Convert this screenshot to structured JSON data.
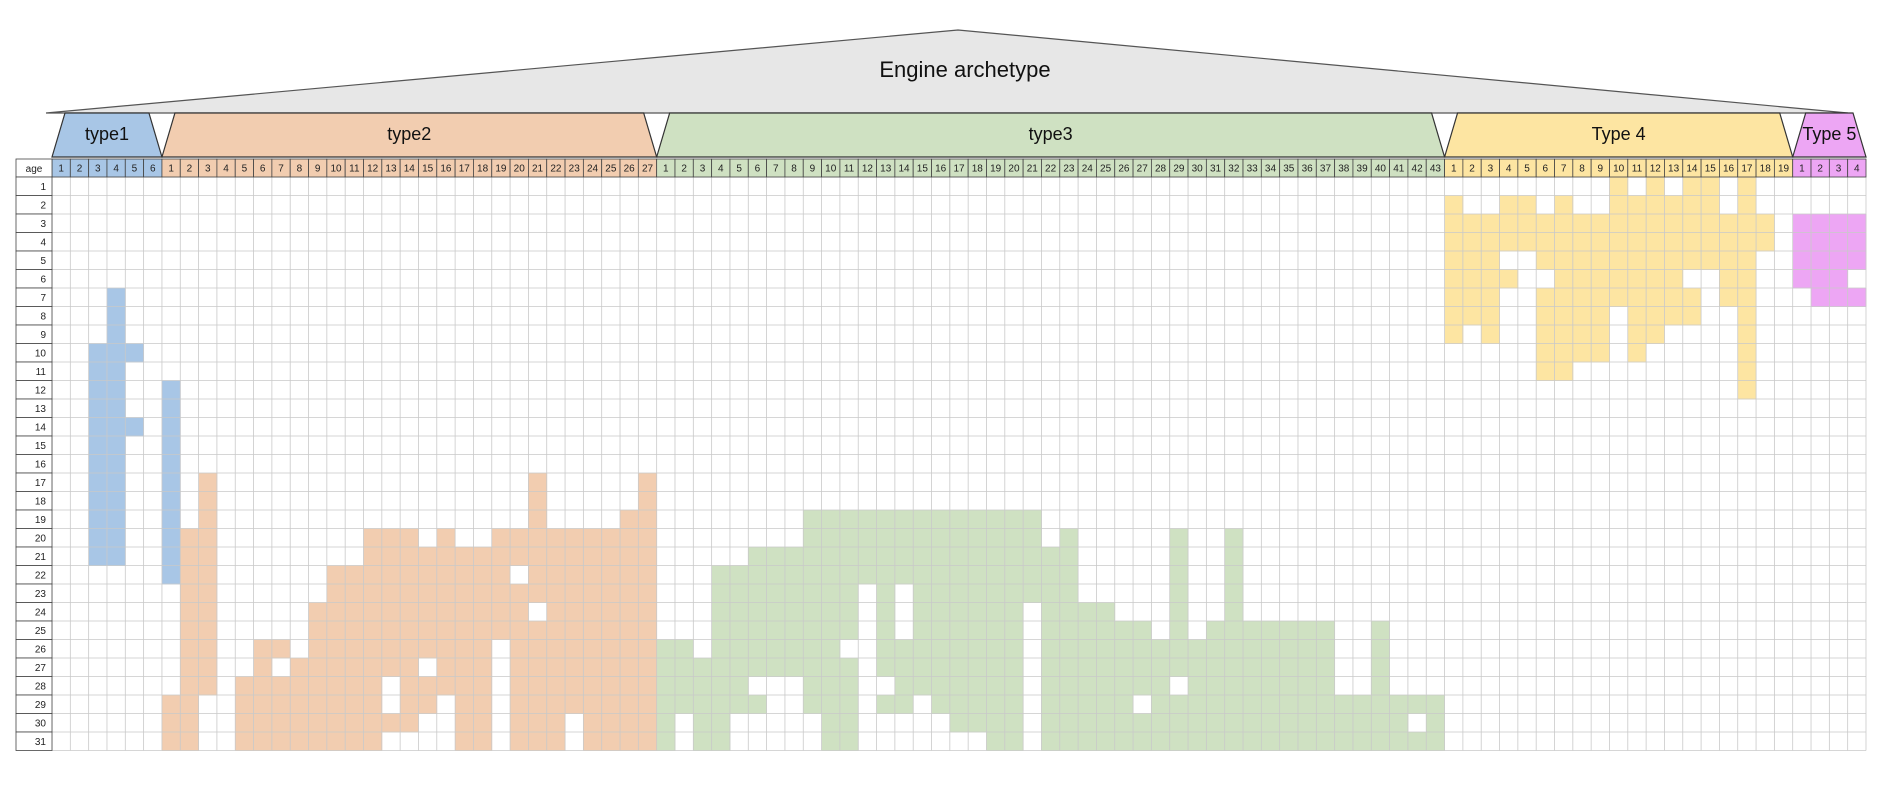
{
  "chart_data": {
    "type": "heatmap",
    "title": "Engine archetype",
    "row_header": "age",
    "rows": [
      1,
      2,
      3,
      4,
      5,
      6,
      7,
      8,
      9,
      10,
      11,
      12,
      13,
      14,
      15,
      16,
      17,
      18,
      19,
      20,
      21,
      22,
      23,
      24,
      25,
      26,
      27,
      28,
      29,
      30,
      31
    ],
    "groups": [
      {
        "name": "type1",
        "color": "#a8c6e6",
        "columns": [
          1,
          2,
          3,
          4,
          5,
          6
        ],
        "filled": [
          [
            7,
            12,
            22
          ],
          [
            4,
            12,
            21
          ],
          [
            3,
            10,
            21
          ],
          [
            3,
            10,
            10
          ],
          [
            3,
            12,
            13
          ],
          [
            3,
            15,
            15
          ],
          [
            4,
            7,
            11
          ],
          [
            4,
            13,
            15
          ],
          [
            5,
            10,
            10
          ],
          [
            5,
            14,
            14
          ]
        ]
      },
      {
        "name": "type2",
        "color": "#f2cdb0",
        "columns": [
          1,
          2,
          3,
          4,
          5,
          6,
          7,
          8,
          9,
          10,
          11,
          12,
          13,
          14,
          15,
          16,
          17,
          18,
          19,
          20,
          21,
          22,
          23,
          24,
          25,
          26,
          27
        ],
        "filled": [
          [
            1,
            29,
            31
          ],
          [
            2,
            20,
            31
          ],
          [
            3,
            17,
            28
          ],
          [
            5,
            28,
            31
          ],
          [
            6,
            26,
            31
          ],
          [
            7,
            28,
            31
          ],
          [
            7,
            26,
            26
          ],
          [
            8,
            27,
            31
          ],
          [
            9,
            24,
            31
          ],
          [
            10,
            22,
            31
          ],
          [
            11,
            24,
            31
          ],
          [
            11,
            22,
            23
          ],
          [
            12,
            20,
            31
          ],
          [
            13,
            20,
            27
          ],
          [
            13,
            30,
            30
          ],
          [
            14,
            20,
            30
          ],
          [
            15,
            21,
            26
          ],
          [
            15,
            28,
            29
          ],
          [
            16,
            20,
            28
          ],
          [
            17,
            21,
            31
          ],
          [
            18,
            21,
            31
          ],
          [
            19,
            20,
            25
          ],
          [
            20,
            20,
            21
          ],
          [
            20,
            23,
            31
          ],
          [
            21,
            17,
            23
          ],
          [
            21,
            25,
            31
          ],
          [
            22,
            20,
            31
          ],
          [
            23,
            20,
            29
          ],
          [
            24,
            20,
            31
          ],
          [
            25,
            20,
            31
          ],
          [
            26,
            19,
            31
          ],
          [
            27,
            17,
            31
          ]
        ]
      },
      {
        "name": "type3",
        "color": "#cfe1c2",
        "columns": [
          1,
          2,
          3,
          4,
          5,
          6,
          7,
          8,
          9,
          10,
          11,
          12,
          13,
          14,
          15,
          16,
          17,
          18,
          19,
          20,
          21,
          22,
          23,
          24,
          25,
          26,
          27,
          28,
          29,
          30,
          31,
          32,
          33,
          34,
          35,
          36,
          37,
          38,
          39,
          40,
          41,
          42,
          43
        ],
        "filled": [
          [
            1,
            26,
            31
          ],
          [
            2,
            26,
            29
          ],
          [
            3,
            27,
            31
          ],
          [
            4,
            22,
            31
          ],
          [
            5,
            22,
            29
          ],
          [
            6,
            21,
            27
          ],
          [
            6,
            29,
            29
          ],
          [
            7,
            21,
            27
          ],
          [
            8,
            21,
            27
          ],
          [
            9,
            19,
            29
          ],
          [
            10,
            19,
            31
          ],
          [
            11,
            19,
            25
          ],
          [
            11,
            27,
            31
          ],
          [
            12,
            19,
            22
          ],
          [
            13,
            19,
            27
          ],
          [
            13,
            29,
            29
          ],
          [
            14,
            19,
            22
          ],
          [
            14,
            26,
            29
          ],
          [
            15,
            19,
            28
          ],
          [
            16,
            19,
            29
          ],
          [
            17,
            19,
            30
          ],
          [
            18,
            19,
            30
          ],
          [
            19,
            19,
            31
          ],
          [
            20,
            19,
            31
          ],
          [
            21,
            19,
            23
          ],
          [
            22,
            21,
            31
          ],
          [
            23,
            20,
            31
          ],
          [
            24,
            24,
            31
          ],
          [
            25,
            24,
            31
          ],
          [
            26,
            25,
            31
          ],
          [
            27,
            25,
            28
          ],
          [
            27,
            30,
            31
          ],
          [
            28,
            26,
            31
          ],
          [
            29,
            20,
            27
          ],
          [
            29,
            29,
            31
          ],
          [
            30,
            26,
            31
          ],
          [
            31,
            25,
            31
          ],
          [
            32,
            20,
            31
          ],
          [
            33,
            25,
            31
          ],
          [
            34,
            25,
            31
          ],
          [
            35,
            25,
            31
          ],
          [
            36,
            25,
            31
          ],
          [
            37,
            25,
            31
          ],
          [
            38,
            29,
            31
          ],
          [
            39,
            29,
            31
          ],
          [
            40,
            25,
            31
          ],
          [
            41,
            29,
            31
          ],
          [
            42,
            29,
            29
          ],
          [
            42,
            31,
            31
          ],
          [
            43,
            29,
            31
          ]
        ]
      },
      {
        "name": "Type 4",
        "color": "#fde5a2",
        "columns": [
          1,
          2,
          3,
          4,
          5,
          6,
          7,
          8,
          9,
          10,
          11,
          12,
          13,
          14,
          15,
          16,
          17,
          18,
          19
        ],
        "filled": [
          [
            1,
            2,
            9
          ],
          [
            2,
            3,
            8
          ],
          [
            3,
            3,
            9
          ],
          [
            4,
            2,
            4
          ],
          [
            4,
            6,
            6
          ],
          [
            5,
            2,
            4
          ],
          [
            6,
            3,
            5
          ],
          [
            6,
            7,
            11
          ],
          [
            7,
            2,
            11
          ],
          [
            8,
            3,
            10
          ],
          [
            9,
            3,
            10
          ],
          [
            10,
            1,
            7
          ],
          [
            11,
            2,
            10
          ],
          [
            12,
            1,
            9
          ],
          [
            13,
            2,
            8
          ],
          [
            14,
            1,
            5
          ],
          [
            14,
            7,
            8
          ],
          [
            15,
            1,
            5
          ],
          [
            16,
            3,
            7
          ],
          [
            17,
            1,
            12
          ],
          [
            18,
            3,
            4
          ]
        ]
      },
      {
        "name": "Type 5",
        "color": "#eda6f4",
        "columns": [
          1,
          2,
          3,
          4
        ],
        "filled": [
          [
            1,
            3,
            6
          ],
          [
            2,
            3,
            7
          ],
          [
            3,
            3,
            7
          ],
          [
            4,
            3,
            5
          ],
          [
            4,
            7,
            7
          ]
        ]
      }
    ]
  }
}
